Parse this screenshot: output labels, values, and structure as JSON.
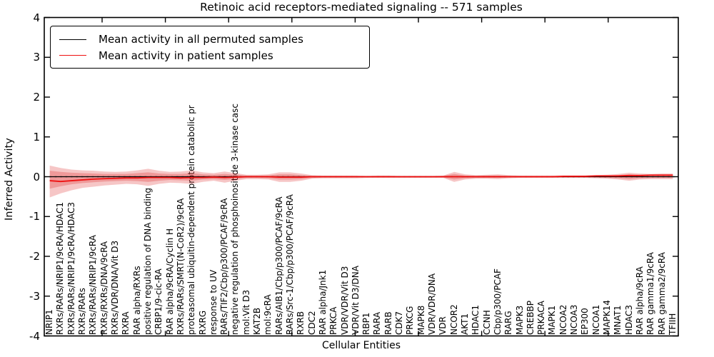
{
  "chart_data": {
    "type": "line",
    "title": "Retinoic acid receptors-mediated signaling -- 571 samples",
    "xlabel": "Cellular Entities",
    "ylabel": "Inferred Activity",
    "ylim": [
      -4,
      4
    ],
    "yticks": [
      {
        "v": 4,
        "label": "4"
      },
      {
        "v": 3,
        "label": "3"
      },
      {
        "v": 2,
        "label": "2"
      },
      {
        "v": 1,
        "label": "1"
      },
      {
        "v": 0,
        "label": "0"
      },
      {
        "v": -1,
        "label": "-1"
      },
      {
        "v": -2,
        "label": "-2"
      },
      {
        "v": -3,
        "label": "-3"
      },
      {
        "v": -4,
        "label": "-4"
      }
    ],
    "grid": false,
    "legend_position": "upper left",
    "zero_line_style": "dotted",
    "categories": [
      "NRIP1",
      "RXRs/RARs/NRIP1/9cRA/HDAC1",
      "RXRs/RARs/NRIP1/9cRA/HDAC3",
      "RXRs/RARs",
      "RXRs/RARs/NRIP1/9cRA",
      "RXRs/RXRs/DNA/9cRA",
      "RXRs/VDR/DNA/Vit D3",
      "RXRA",
      "RAR alpha/RXRs",
      "positive regulation of DNA binding",
      "CRBP1/9-cic-RA",
      "RAR alpha/9cRA/Cyclin H",
      "RXRs/RARs/SMRT(N-CoR2)/9cRA",
      "proteasomal ubiquitin-dependent protein catabolic pr",
      "RXRG",
      "response to UV",
      "RARs/TIF2/Cbp/p300/PCAF/9cRA",
      "negative regulation of phosphoinositide 3-kinase casc",
      "mol:Vit D3",
      "KAT2B",
      "mol:9cRA",
      "RARs/AIB1/Cbp/p300/PCAF/9cRA",
      "RARs/Src-1/Cbp/p300/PCAF/9cRA",
      "RXRB",
      "CDC2",
      "RAR alpha/Jnk1",
      "PRKCA",
      "VDR/VDR/Vit D3",
      "VDR/Vit D3/DNA",
      "RBP1",
      "RARA",
      "RARB",
      "CDK7",
      "PRKCG",
      "MAPK8",
      "VDR/VDR/DNA",
      "VDR",
      "NCOR2",
      "AKT1",
      "HDAC1",
      "CCNH",
      "Cbp/p300/PCAF",
      "RARG",
      "MAPK3",
      "CREBBP",
      "PRKACA",
      "MAPK1",
      "NCOA2",
      "NCOA3",
      "EP300",
      "NCOA1",
      "MAPK14",
      "MNAT1",
      "HDAC3",
      "RAR alpha/9cRA",
      "RAR gamma1/9cRA",
      "RAR gamma2/9cRA",
      "TFIIH"
    ],
    "series": [
      {
        "name": "Mean activity in all permuted samples",
        "color": "#000000",
        "values": [
          0,
          0,
          0,
          0,
          0,
          0,
          0,
          0,
          0,
          0,
          0,
          0,
          0,
          0,
          0,
          0,
          0,
          0,
          0,
          0,
          0,
          0,
          0,
          0,
          0,
          0,
          0,
          0,
          0,
          0,
          0,
          0,
          0,
          0,
          0,
          0,
          0,
          0,
          0,
          0,
          0,
          0,
          0,
          0,
          0,
          0,
          0,
          0,
          0,
          0,
          0,
          0,
          0,
          0,
          0,
          0,
          0,
          0
        ]
      },
      {
        "name": "Mean activity in patient samples",
        "color": "#ee1111",
        "values": [
          -0.1,
          -0.12,
          -0.1,
          -0.08,
          -0.06,
          -0.05,
          -0.04,
          -0.03,
          -0.03,
          -0.02,
          -0.02,
          -0.02,
          -0.03,
          -0.02,
          -0.02,
          -0.01,
          -0.02,
          -0.01,
          0,
          0,
          0,
          -0.01,
          -0.01,
          -0.01,
          0,
          0,
          0,
          0,
          0,
          0,
          0,
          0,
          0,
          0,
          0,
          0,
          0,
          0,
          0,
          0,
          0,
          0,
          0,
          0,
          0,
          0,
          0,
          0.01,
          0.01,
          0.01,
          0.02,
          0.02,
          0.02,
          0.03,
          0.03,
          0.04,
          0.04,
          0.04
        ]
      }
    ],
    "band": {
      "color": "#dd3333",
      "outer_upper": [
        0.28,
        0.22,
        0.18,
        0.16,
        0.15,
        0.13,
        0.12,
        0.13,
        0.16,
        0.2,
        0.15,
        0.12,
        0.13,
        0.16,
        0.11,
        0.09,
        0.13,
        0.09,
        0.05,
        0.05,
        0.06,
        0.11,
        0.11,
        0.08,
        0.04,
        0.03,
        0.03,
        0.03,
        0.03,
        0.02,
        0.03,
        0.03,
        0.02,
        0.02,
        0.02,
        0.02,
        0.03,
        0.12,
        0.06,
        0.04,
        0.05,
        0.06,
        0.04,
        0.03,
        0.03,
        0.03,
        0.03,
        0.03,
        0.03,
        0.03,
        0.04,
        0.05,
        0.07,
        0.1,
        0.08,
        0.07,
        0.08,
        0.08
      ],
      "outer_lower": [
        -0.52,
        -0.42,
        -0.34,
        -0.28,
        -0.25,
        -0.22,
        -0.2,
        -0.18,
        -0.19,
        -0.23,
        -0.18,
        -0.15,
        -0.16,
        -0.18,
        -0.13,
        -0.1,
        -0.15,
        -0.1,
        -0.06,
        -0.06,
        -0.07,
        -0.13,
        -0.13,
        -0.1,
        -0.05,
        -0.04,
        -0.04,
        -0.04,
        -0.04,
        -0.03,
        -0.03,
        -0.03,
        -0.03,
        -0.03,
        -0.03,
        -0.03,
        -0.03,
        -0.13,
        -0.07,
        -0.05,
        -0.05,
        -0.06,
        -0.04,
        -0.03,
        -0.03,
        -0.03,
        -0.03,
        -0.03,
        -0.03,
        -0.03,
        -0.04,
        -0.05,
        -0.07,
        -0.1,
        -0.07,
        -0.06,
        -0.06,
        -0.06
      ],
      "inner_upper": [
        0.15,
        0.12,
        0.1,
        0.09,
        0.08,
        0.07,
        0.07,
        0.07,
        0.09,
        0.11,
        0.08,
        0.07,
        0.07,
        0.09,
        0.06,
        0.05,
        0.07,
        0.05,
        0.03,
        0.03,
        0.03,
        0.06,
        0.06,
        0.04,
        0.02,
        0.02,
        0.02,
        0.02,
        0.02,
        0.01,
        0.02,
        0.02,
        0.01,
        0.01,
        0.01,
        0.01,
        0.02,
        0.07,
        0.03,
        0.02,
        0.03,
        0.03,
        0.02,
        0.02,
        0.02,
        0.02,
        0.02,
        0.02,
        0.02,
        0.02,
        0.02,
        0.03,
        0.04,
        0.06,
        0.04,
        0.04,
        0.04,
        0.04
      ],
      "inner_lower": [
        -0.3,
        -0.24,
        -0.19,
        -0.16,
        -0.14,
        -0.12,
        -0.11,
        -0.1,
        -0.11,
        -0.13,
        -0.1,
        -0.08,
        -0.09,
        -0.1,
        -0.07,
        -0.06,
        -0.08,
        -0.06,
        -0.03,
        -0.03,
        -0.04,
        -0.07,
        -0.07,
        -0.06,
        -0.03,
        -0.02,
        -0.02,
        -0.02,
        -0.02,
        -0.02,
        -0.02,
        -0.02,
        -0.02,
        -0.02,
        -0.02,
        -0.02,
        -0.02,
        -0.07,
        -0.04,
        -0.03,
        -0.03,
        -0.03,
        -0.02,
        -0.02,
        -0.02,
        -0.02,
        -0.02,
        -0.02,
        -0.02,
        -0.02,
        -0.02,
        -0.03,
        -0.04,
        -0.06,
        -0.04,
        -0.03,
        -0.03,
        -0.03
      ]
    }
  }
}
